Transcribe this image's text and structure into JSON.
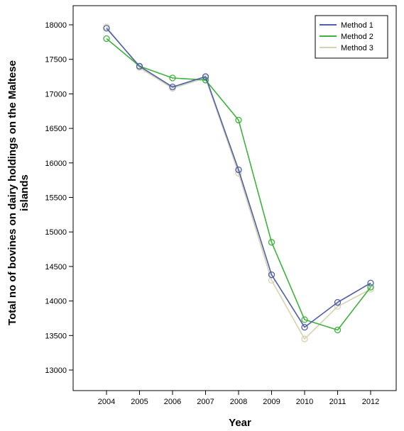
{
  "chart_data": {
    "type": "line",
    "title": "",
    "xlabel": "Year",
    "ylabel_line1": "Total no of bovines on dairy holdings on the Maltese",
    "ylabel_line2": "islands",
    "x": [
      "2004",
      "2005",
      "2006",
      "2007",
      "2008",
      "2009",
      "2010",
      "2011",
      "2012"
    ],
    "yticks": [
      "13000",
      "13500",
      "14000",
      "14500",
      "15000",
      "15500",
      "16000",
      "16500",
      "17000",
      "17500",
      "18000"
    ],
    "ylim": [
      12800,
      18150
    ],
    "grid": false,
    "legend_position": "top-right",
    "series": [
      {
        "name": "Method 1",
        "color": "#4f5fa8",
        "values": [
          17950,
          17400,
          17100,
          17250,
          15900,
          14380,
          13620,
          13980,
          14260
        ]
      },
      {
        "name": "Method 2",
        "color": "#3cb33c",
        "values": [
          17800,
          17400,
          17230,
          17200,
          16620,
          14850,
          13730,
          13580,
          14200
        ]
      },
      {
        "name": "Method 3",
        "color": "#d6d3b2",
        "values": [
          17970,
          17380,
          17080,
          17230,
          15850,
          14300,
          13450,
          13920,
          14170
        ]
      }
    ]
  }
}
